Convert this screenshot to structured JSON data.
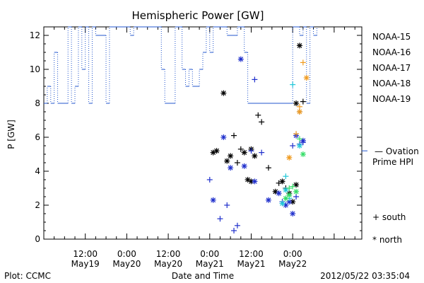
{
  "chart_data": {
    "type": "scatter",
    "title": "Hemispheric Power [GW]",
    "xlabel": "Date and Time",
    "ylabel": "P [GW]",
    "ylim": [
      0,
      12.5
    ],
    "xlim": [
      0,
      92
    ],
    "y_ticks": [
      0,
      2,
      4,
      6,
      8,
      10,
      12
    ],
    "x_ticks": [
      {
        "x": 12,
        "time": "12:00",
        "date": "May19"
      },
      {
        "x": 24,
        "time": "0:00",
        "date": "May20"
      },
      {
        "x": 36,
        "time": "12:00",
        "date": "May20"
      },
      {
        "x": 48,
        "time": "0:00",
        "date": "May21"
      },
      {
        "x": 60,
        "time": "12:00",
        "date": "May21"
      },
      {
        "x": 72,
        "time": "0:00",
        "date": "May22"
      }
    ],
    "legend": {
      "position": "right",
      "series_labels": [
        "NOAA-15",
        "NOAA-16",
        "NOAA-17",
        "NOAA-18",
        "NOAA-19"
      ],
      "ovation_label_1": "— Ovation",
      "ovation_label_2": "Prime HPI",
      "south_label": "+ south",
      "north_label": "* north"
    },
    "footer": {
      "left": "Plot: CCMC",
      "right": "2012/05/22 03:35:04"
    },
    "colors": {
      "NOAA-15": "#000000",
      "NOAA-16": "#1f2fcc",
      "NOAA-17": "#22c8d8",
      "NOAA-18": "#33dd66",
      "NOAA-19": "#f09a1e",
      "ovation": "#2255cc"
    },
    "ovation_hpi": {
      "name": "Ovation Prime HPI",
      "points": [
        [
          0,
          8
        ],
        [
          1,
          8
        ],
        [
          1,
          9
        ],
        [
          2,
          9
        ],
        [
          2,
          8
        ],
        [
          3,
          8
        ],
        [
          3,
          11
        ],
        [
          4,
          11
        ],
        [
          4,
          8
        ],
        [
          7,
          8
        ],
        [
          7,
          12.5
        ],
        [
          8,
          12.5
        ],
        [
          8,
          8
        ],
        [
          9,
          8
        ],
        [
          9,
          9
        ],
        [
          10,
          9
        ],
        [
          10,
          12.5
        ],
        [
          11,
          12.5
        ],
        [
          11,
          10
        ],
        [
          12,
          10
        ],
        [
          12,
          12.5
        ],
        [
          13,
          12.5
        ],
        [
          13,
          8
        ],
        [
          14,
          8
        ],
        [
          14,
          12.5
        ],
        [
          15,
          12.5
        ],
        [
          15,
          12
        ],
        [
          18,
          12
        ],
        [
          18,
          8
        ],
        [
          19,
          8
        ],
        [
          19,
          12.5
        ],
        [
          25,
          12.5
        ],
        [
          25,
          12
        ],
        [
          26,
          12
        ],
        [
          26,
          12.5
        ],
        [
          34,
          12.5
        ],
        [
          34,
          10
        ],
        [
          35,
          10
        ],
        [
          35,
          8
        ],
        [
          38,
          8
        ],
        [
          38,
          12.5
        ],
        [
          40,
          12.5
        ],
        [
          40,
          10
        ],
        [
          41,
          10
        ],
        [
          41,
          9
        ],
        [
          42,
          9
        ],
        [
          42,
          10
        ],
        [
          43,
          10
        ],
        [
          43,
          9
        ],
        [
          45,
          9
        ],
        [
          45,
          10
        ],
        [
          46,
          10
        ],
        [
          46,
          11
        ],
        [
          47,
          11
        ],
        [
          47,
          12.5
        ],
        [
          48,
          12.5
        ],
        [
          48,
          11
        ],
        [
          49,
          11
        ],
        [
          49,
          12.5
        ],
        [
          53,
          12.5
        ],
        [
          53,
          12
        ],
        [
          56,
          12
        ],
        [
          56,
          12.5
        ],
        [
          58,
          12.5
        ],
        [
          58,
          11
        ],
        [
          59,
          11
        ],
        [
          59,
          8
        ],
        [
          72,
          8
        ],
        [
          72,
          12.5
        ],
        [
          74,
          12.5
        ],
        [
          74,
          12
        ],
        [
          75,
          12
        ],
        [
          75,
          12.5
        ],
        [
          76,
          12.5
        ],
        [
          76,
          8
        ],
        [
          77,
          8
        ],
        [
          77,
          12.5
        ],
        [
          78,
          12.5
        ],
        [
          78,
          12
        ],
        [
          79,
          12
        ],
        [
          79,
          12.5
        ]
      ]
    },
    "series": [
      {
        "name": "NOAA-15",
        "hemisphere": "south",
        "points": [
          [
            57,
            5.3
          ],
          [
            56,
            4.5
          ],
          [
            62,
            7.3
          ],
          [
            63,
            6.9
          ],
          [
            65,
            4.2
          ],
          [
            68,
            3.3
          ],
          [
            74,
            7.5
          ],
          [
            75,
            8.1
          ],
          [
            70,
            3.0
          ],
          [
            55,
            6.1
          ]
        ]
      },
      {
        "name": "NOAA-15",
        "hemisphere": "north",
        "points": [
          [
            52,
            8.6
          ],
          [
            49,
            5.1
          ],
          [
            50,
            5.2
          ],
          [
            53,
            4.6
          ],
          [
            54,
            4.9
          ],
          [
            58,
            5.1
          ],
          [
            60,
            5.3
          ],
          [
            61,
            4.9
          ],
          [
            59,
            3.5
          ],
          [
            60,
            3.4
          ],
          [
            67,
            2.8
          ],
          [
            69,
            3.4
          ],
          [
            71,
            2.7
          ],
          [
            73,
            8.0
          ],
          [
            74,
            11.4
          ],
          [
            72,
            2.2
          ],
          [
            73,
            3.2
          ]
        ]
      },
      {
        "name": "NOAA-16",
        "hemisphere": "south",
        "points": [
          [
            48,
            3.5
          ],
          [
            51,
            1.2
          ],
          [
            53,
            2.0
          ],
          [
            55,
            0.5
          ],
          [
            56,
            0.8
          ],
          [
            60,
            5.2
          ],
          [
            61,
            9.4
          ],
          [
            63,
            5.1
          ],
          [
            69,
            2.2
          ],
          [
            73,
            2.5
          ],
          [
            72,
            5.5
          ],
          [
            74,
            5.6
          ],
          [
            75,
            5.7
          ]
        ]
      },
      {
        "name": "NOAA-16",
        "hemisphere": "north",
        "points": [
          [
            49,
            2.3
          ],
          [
            52,
            6.0
          ],
          [
            54,
            4.2
          ],
          [
            57,
            10.6
          ],
          [
            58,
            4.3
          ],
          [
            61,
            3.4
          ],
          [
            65,
            2.3
          ],
          [
            68,
            2.7
          ],
          [
            70,
            2.0
          ],
          [
            71,
            2.2
          ],
          [
            72,
            1.5
          ],
          [
            73,
            6.1
          ],
          [
            75,
            5.8
          ]
        ]
      },
      {
        "name": "NOAA-17",
        "hemisphere": "south",
        "points": [
          [
            70,
            3.7
          ],
          [
            71,
            2.4
          ],
          [
            72,
            9.1
          ]
        ]
      },
      {
        "name": "NOAA-17",
        "hemisphere": "north",
        "points": [
          [
            69,
            2.1
          ],
          [
            70,
            2.9
          ],
          [
            74,
            5.5
          ]
        ]
      },
      {
        "name": "NOAA-18",
        "hemisphere": "south",
        "points": [
          [
            71,
            3.0
          ],
          [
            72,
            3.1
          ],
          [
            74,
            5.9
          ]
        ]
      },
      {
        "name": "NOAA-18",
        "hemisphere": "north",
        "points": [
          [
            70,
            2.4
          ],
          [
            71,
            2.6
          ],
          [
            73,
            2.8
          ],
          [
            75,
            5.0
          ]
        ]
      },
      {
        "name": "NOAA-19",
        "hemisphere": "south",
        "points": [
          [
            73,
            6.2
          ],
          [
            75,
            10.4
          ],
          [
            74,
            7.8
          ]
        ]
      },
      {
        "name": "NOAA-19",
        "hemisphere": "north",
        "points": [
          [
            71,
            4.8
          ],
          [
            74,
            7.5
          ],
          [
            76,
            9.5
          ]
        ]
      }
    ]
  }
}
